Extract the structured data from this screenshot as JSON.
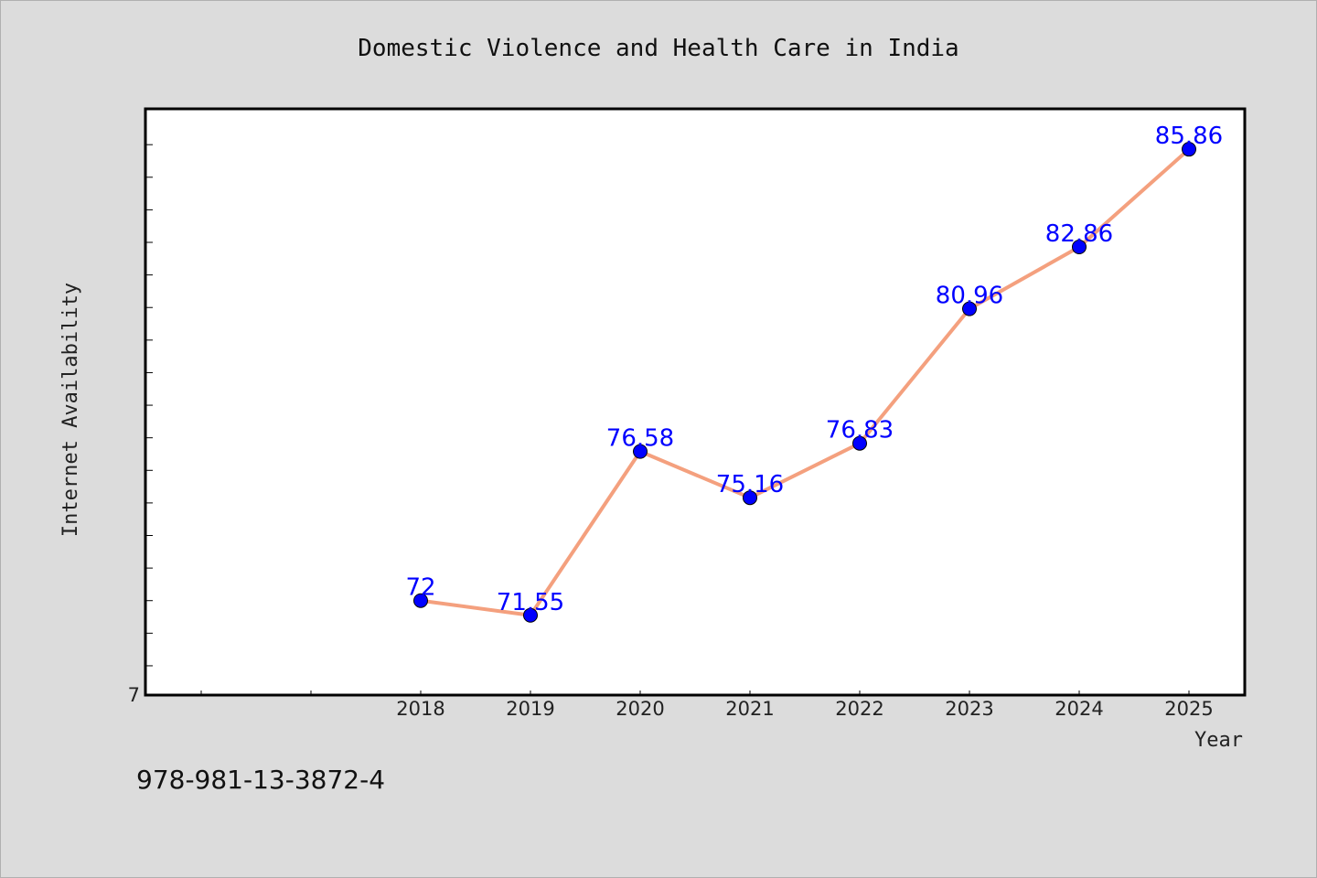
{
  "footer": {
    "isbn": "978-981-13-3872-4"
  },
  "colors": {
    "page_background": "#dcdcdc",
    "plot_background": "#ffffff",
    "line": "#f4a07e",
    "marker": "#0000ff",
    "data_label": "#0000ff"
  },
  "chart_data": {
    "type": "line",
    "title": "Domestic Violence and Health Care in India",
    "xlabel": "Year",
    "ylabel": "Internet Availability",
    "x": [
      "2018",
      "2019",
      "2020",
      "2021",
      "2022",
      "2023",
      "2024",
      "2025"
    ],
    "series": [
      {
        "values": [
          72,
          71.55,
          76.58,
          75.16,
          76.83,
          80.96,
          82.86,
          85.86
        ]
      }
    ],
    "data_labels": [
      "72",
      "71.55",
      "76.58",
      "75.16",
      "76.83",
      "80.96",
      "82.86",
      "85.86"
    ],
    "y_tick_labels": [
      "7"
    ],
    "ylim": [
      69.1,
      87.1
    ],
    "y_tick_step": 1,
    "grid": false,
    "legend": "none",
    "markers": "circle"
  }
}
